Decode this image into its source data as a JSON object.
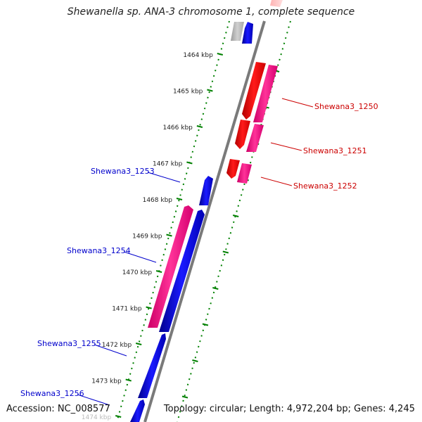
{
  "title": "Shewanella sp. ANA-3 chromosome 1, complete sequence",
  "accession": "Accession: NC_008577",
  "summary": "Topology: circular; Length: 4,972,204 bp; Genes: 4,245",
  "colors": {
    "forward_cds": "#ff0000",
    "forward_cds_light": "#ff3399",
    "reverse_cds": "#0000ff",
    "reverse_cds_light": "#ff3399",
    "backbone": "#808080",
    "ticks": "#008000",
    "label_forward": "#cc0000",
    "label_reverse": "#0000cc"
  },
  "ticks": [
    {
      "label": "1464 kbp"
    },
    {
      "label": "1465 kbp"
    },
    {
      "label": "1466 kbp"
    },
    {
      "label": "1467 kbp"
    },
    {
      "label": "1468 kbp"
    },
    {
      "label": "1469 kbp"
    },
    {
      "label": "1470 kbp"
    },
    {
      "label": "1471 kbp"
    },
    {
      "label": "1472 kbp"
    },
    {
      "label": "1473 kbp"
    },
    {
      "label": "1474 kbp"
    }
  ],
  "gene_labels": [
    {
      "name": "Shewana3_1250",
      "strand": "forward"
    },
    {
      "name": "Shewana3_1251",
      "strand": "forward"
    },
    {
      "name": "Shewana3_1252",
      "strand": "forward"
    },
    {
      "name": "Shewana3_1253",
      "strand": "reverse"
    },
    {
      "name": "Shewana3_1254",
      "strand": "reverse"
    },
    {
      "name": "Shewana3_1255",
      "strand": "reverse"
    },
    {
      "name": "Shewana3_1256",
      "strand": "reverse"
    }
  ]
}
